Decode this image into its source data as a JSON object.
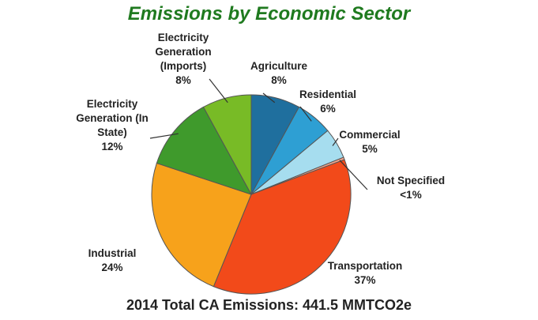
{
  "chart_data": {
    "type": "pie",
    "title": "Emissions by Economic Sector",
    "footer": "2014 Total CA Emissions: 441.5 MMTCO2e",
    "slices": [
      {
        "label": [
          "Agriculture"
        ],
        "pct_label": "8%",
        "value": 8,
        "color": "#1f6f9e"
      },
      {
        "label": [
          "Residential"
        ],
        "pct_label": "6%",
        "value": 6,
        "color": "#2e9fd3"
      },
      {
        "label": [
          "Commercial"
        ],
        "pct_label": "5%",
        "value": 5,
        "color": "#a6ddef"
      },
      {
        "label": [
          "Not Specified"
        ],
        "pct_label": "<1%",
        "value": 0.4,
        "color": "#f5a48a"
      },
      {
        "label": [
          "Transportation"
        ],
        "pct_label": "37%",
        "value": 37,
        "color": "#f24a1a"
      },
      {
        "label": [
          "Industrial"
        ],
        "pct_label": "24%",
        "value": 24,
        "color": "#f7a21b"
      },
      {
        "label": [
          "Electricity",
          "Generation (In",
          "State)"
        ],
        "pct_label": "12%",
        "value": 12,
        "color": "#3f9a2c"
      },
      {
        "label": [
          "Electricity",
          "Generation",
          "(Imports)"
        ],
        "pct_label": "8%",
        "value": 8,
        "color": "#78bb26"
      }
    ]
  }
}
